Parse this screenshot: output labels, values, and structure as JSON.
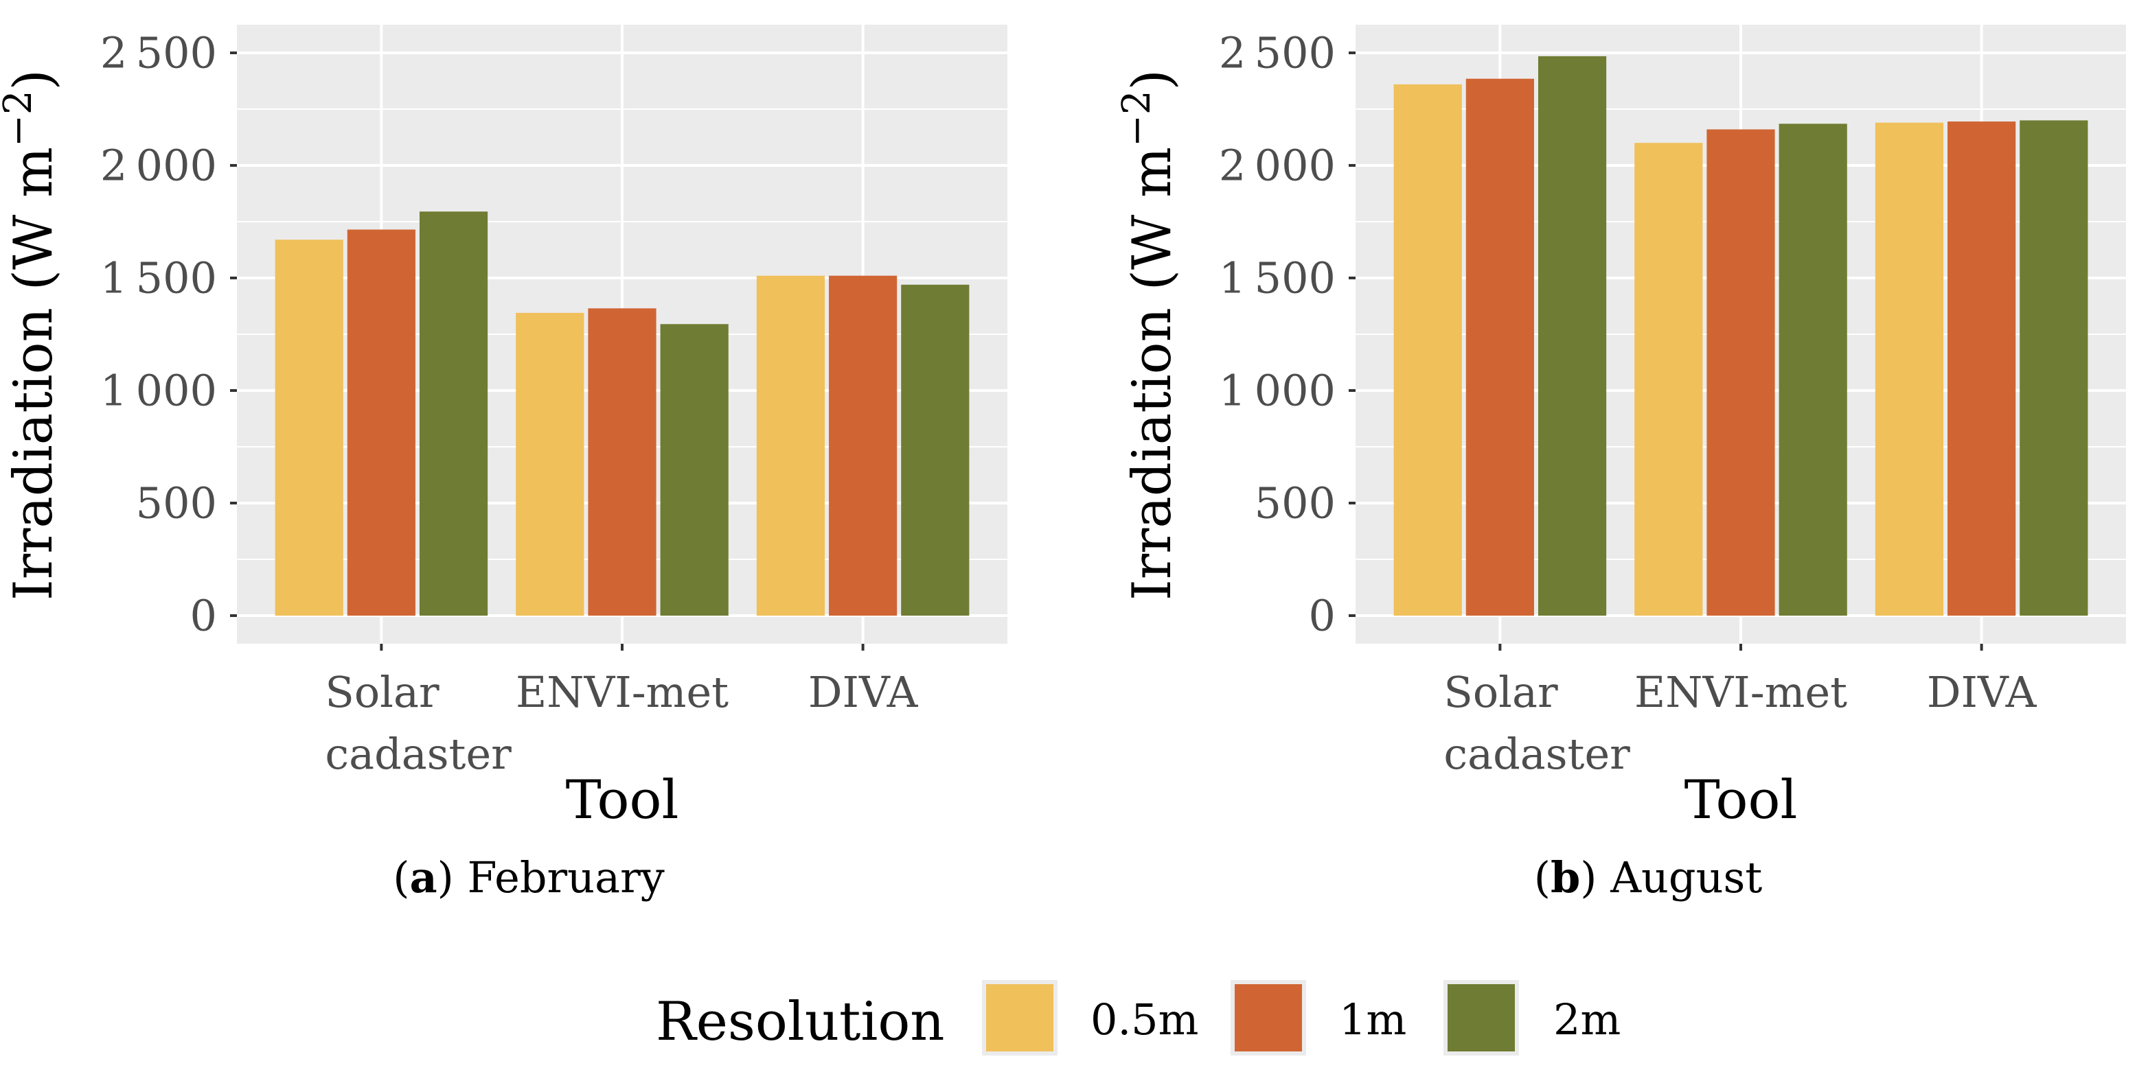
{
  "chart_data": [
    {
      "type": "bar",
      "panel_letter": "a",
      "caption": "February",
      "categories": [
        "Solar\ncadaster",
        "ENVI-met",
        "DIVA"
      ],
      "series": [
        {
          "name": "0.5m",
          "values": [
            1670,
            1345,
            1510
          ]
        },
        {
          "name": "1m",
          "values": [
            1715,
            1365,
            1510
          ]
        },
        {
          "name": "2m",
          "values": [
            1795,
            1295,
            1470
          ]
        }
      ],
      "xlabel": "Tool",
      "ylabel": "Irradiation (W m⁻²)",
      "ylabel_main": "Irradiation (W m",
      "ylabel_sup": "−2",
      "ylabel_close": ")",
      "ylim": [
        -125,
        2625
      ],
      "yticks": [
        0,
        500,
        1000,
        1500,
        2000,
        2500
      ],
      "ytick_labels": [
        "0",
        "500",
        "1 000",
        "1 500",
        "2 000",
        "2 500"
      ],
      "grid": true
    },
    {
      "type": "bar",
      "panel_letter": "b",
      "caption": "August",
      "categories": [
        "Solar\ncadaster",
        "ENVI-met",
        "DIVA"
      ],
      "series": [
        {
          "name": "0.5m",
          "values": [
            2360,
            2100,
            2190
          ]
        },
        {
          "name": "1m",
          "values": [
            2385,
            2160,
            2195
          ]
        },
        {
          "name": "2m",
          "values": [
            2485,
            2185,
            2200
          ]
        }
      ],
      "xlabel": "Tool",
      "ylabel": "Irradiation (W m⁻²)",
      "ylabel_main": "Irradiation (W m",
      "ylabel_sup": "−2",
      "ylabel_close": ")",
      "ylim": [
        -125,
        2625
      ],
      "yticks": [
        0,
        500,
        1000,
        1500,
        2000,
        2500
      ],
      "ytick_labels": [
        "0",
        "500",
        "1 000",
        "1 500",
        "2 000",
        "2 500"
      ],
      "grid": true
    }
  ],
  "legend": {
    "title": "Resolution",
    "placement": "bottom",
    "items": [
      {
        "label": "0.5m",
        "color": "#F0C05A"
      },
      {
        "label": "1m",
        "color": "#D06533"
      },
      {
        "label": "2m",
        "color": "#6F7C33"
      }
    ]
  },
  "colors": {
    "panel_background": "#EBEBEB",
    "grid": "#FFFFFF",
    "tick_text": "#4D4D4D"
  }
}
